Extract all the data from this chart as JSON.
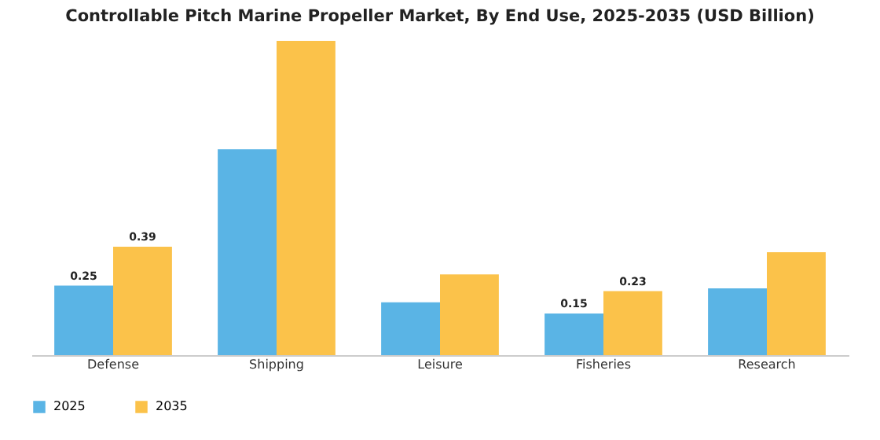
{
  "chart_data": {
    "type": "bar",
    "title": "Controllable Pitch Marine Propeller Market, By End Use, 2025-2035 (USD Billion)",
    "categories": [
      "Defense",
      "Shipping",
      "Leisure",
      "Fisheries",
      "Research"
    ],
    "series": [
      {
        "name": "2025",
        "color": "#5ab4e5",
        "values": [
          0.25,
          0.74,
          0.19,
          0.15,
          0.24
        ],
        "value_labels": [
          "0.25",
          null,
          null,
          "0.15",
          null
        ]
      },
      {
        "name": "2035",
        "color": "#fbc24a",
        "values": [
          0.39,
          1.13,
          0.29,
          0.23,
          0.37
        ],
        "value_labels": [
          "0.39",
          null,
          null,
          "0.23",
          null
        ]
      }
    ],
    "legend": "bottom"
  }
}
